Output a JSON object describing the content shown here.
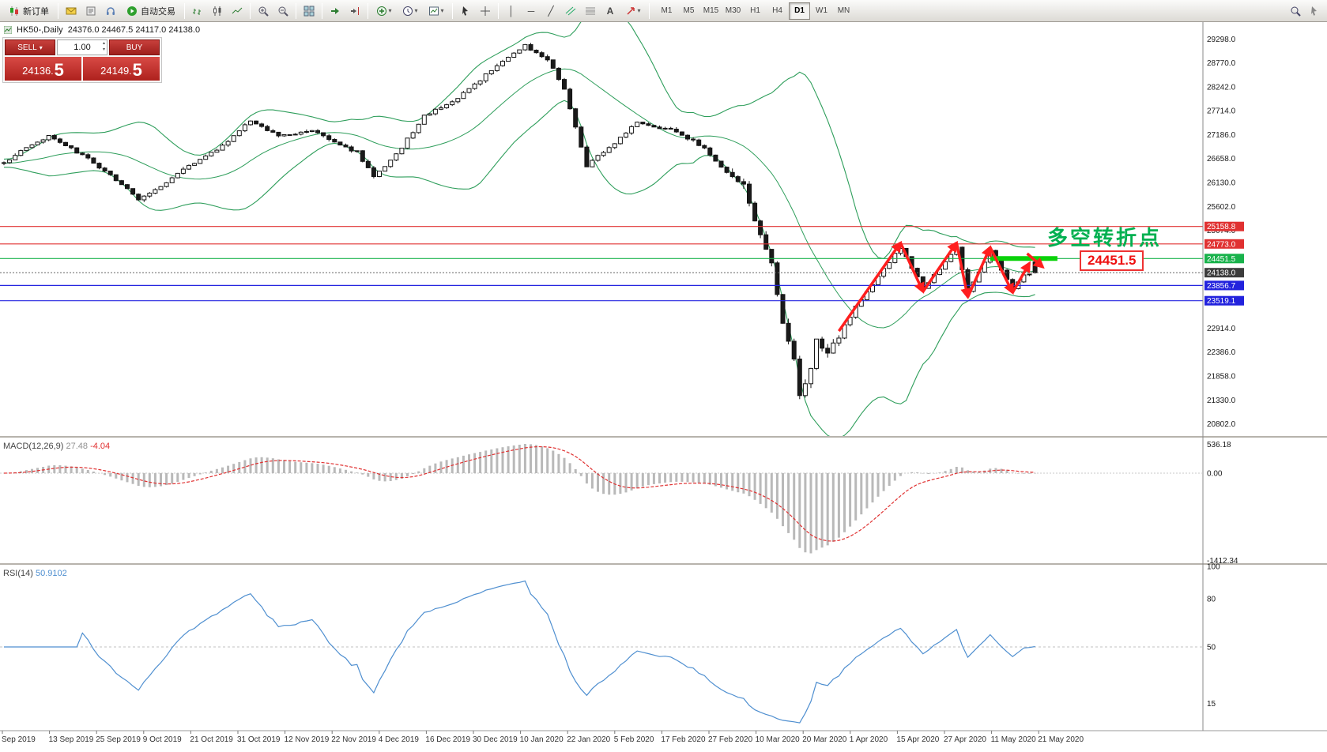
{
  "toolbar": {
    "new_order_label": "新订单",
    "auto_trading_label": "自动交易",
    "timeframes": [
      "M1",
      "M5",
      "M15",
      "M30",
      "H1",
      "H4",
      "D1",
      "W1",
      "MN"
    ],
    "active_timeframe": "D1"
  },
  "symbol_header": {
    "title": "HK50-,Daily",
    "ohlc": "24376.0 24467.5 24117.0 24138.0"
  },
  "trade_panel": {
    "sell_label": "SELL",
    "buy_label": "BUY",
    "volume": "1.00",
    "price_sep": ".",
    "sell_price_main": "24136",
    "sell_price_pip": "5",
    "buy_price_main": "24149",
    "buy_price_pip": "5"
  },
  "annotation": {
    "text": "多空转折点",
    "color": "#00b050"
  },
  "price_callout": {
    "text": "24451.5",
    "color": "#ee1111"
  },
  "indicators": {
    "macd": {
      "name": "MACD(12,26,9)",
      "value_main": "27.48",
      "value_signal": "-4.04",
      "scale_top": "536.18",
      "scale_zero": "0.00",
      "scale_bottom": "-1412.34"
    },
    "rsi": {
      "name": "RSI(14)",
      "value": "50.9102",
      "scale": [
        "100",
        "80",
        "50",
        "15"
      ]
    }
  },
  "price_axis": {
    "labels": [
      "29298.0",
      "28770.0",
      "28242.0",
      "27714.0",
      "27186.0",
      "26658.0",
      "26130.0",
      "25602.0",
      "25074.0",
      "22914.0",
      "22386.0",
      "21858.0",
      "21330.0",
      "20802.0"
    ],
    "badges": [
      {
        "value": 25158.8,
        "text": "25158.8",
        "bg": "#e03131",
        "fg": "#ffffff"
      },
      {
        "value": 24773.0,
        "text": "24773.0",
        "bg": "#e03131",
        "fg": "#ffffff"
      },
      {
        "value": 24451.5,
        "text": "24451.5",
        "bg": "#18b24b",
        "fg": "#ffffff"
      },
      {
        "value": 24138.0,
        "text": "24138.0",
        "bg": "#3c3c3c",
        "fg": "#ffffff"
      },
      {
        "value": 23856.7,
        "text": "23856.7",
        "bg": "#2222dd",
        "fg": "#ffffff"
      },
      {
        "value": 23519.1,
        "text": "23519.1",
        "bg": "#2222dd",
        "fg": "#ffffff"
      }
    ]
  },
  "time_axis": [
    "Sep 2019",
    "13 Sep 2019",
    "25 Sep 2019",
    "9 Oct 2019",
    "21 Oct 2019",
    "31 Oct 2019",
    "12 Nov 2019",
    "22 Nov 2019",
    "4 Dec 2019",
    "16 Dec 2019",
    "30 Dec 2019",
    "10 Jan 2020",
    "22 Jan 2020",
    "5 Feb 2020",
    "17 Feb 2020",
    "27 Feb 2020",
    "10 Mar 2020",
    "20 Mar 2020",
    "1 Apr 2020",
    "15 Apr 2020",
    "27 Apr 2020",
    "11 May 2020",
    "21 May 2020"
  ],
  "chart_data": {
    "type": "candlestick",
    "symbol": "HK50",
    "timeframe": "Daily",
    "last_ohlc": {
      "open": 24376.0,
      "high": 24467.5,
      "low": 24117.0,
      "close": 24138.0
    },
    "y_range": [
      20550,
      29600
    ],
    "bars": 185,
    "overlays": [
      "bollinger_bands_20_2"
    ],
    "band_color": "#2e9e5b",
    "bull_color": "#ffffff",
    "bear_color": "#1a1a1a",
    "price_anchors": [
      [
        0,
        26550
      ],
      [
        4,
        26900
      ],
      [
        8,
        27150
      ],
      [
        13,
        26800
      ],
      [
        18,
        26400
      ],
      [
        24,
        25750
      ],
      [
        28,
        26050
      ],
      [
        33,
        26500
      ],
      [
        38,
        26850
      ],
      [
        44,
        27500
      ],
      [
        49,
        27150
      ],
      [
        55,
        27300
      ],
      [
        59,
        27000
      ],
      [
        63,
        26800
      ],
      [
        66,
        26250
      ],
      [
        71,
        26900
      ],
      [
        75,
        27600
      ],
      [
        80,
        27900
      ],
      [
        85,
        28400
      ],
      [
        90,
        28900
      ],
      [
        93,
        29150
      ],
      [
        97,
        28850
      ],
      [
        100,
        28200
      ],
      [
        104,
        26500
      ],
      [
        108,
        26900
      ],
      [
        113,
        27450
      ],
      [
        120,
        27250
      ],
      [
        125,
        26900
      ],
      [
        128,
        26450
      ],
      [
        132,
        26050
      ],
      [
        134,
        25300
      ],
      [
        137,
        24300
      ],
      [
        139,
        23000
      ],
      [
        141,
        22200
      ],
      [
        142,
        21400
      ],
      [
        144,
        22100
      ],
      [
        145,
        22700
      ],
      [
        147,
        22300
      ],
      [
        150,
        23000
      ],
      [
        155,
        23900
      ],
      [
        160,
        24700
      ],
      [
        164,
        23800
      ],
      [
        167,
        24200
      ],
      [
        170,
        24700
      ],
      [
        172,
        23700
      ],
      [
        176,
        24600
      ],
      [
        180,
        23800
      ],
      [
        182,
        24100
      ],
      [
        184,
        24140
      ]
    ],
    "horizontal_levels": {
      "red": [
        25158.8,
        24773.0
      ],
      "green": [
        24451.5
      ],
      "blue": [
        23856.7,
        23519.1
      ],
      "current": 24138.0
    },
    "green_segment": {
      "price": 24451.5,
      "from_bar": 176,
      "to_bar": 188
    },
    "zigzag": [
      [
        149,
        22850
      ],
      [
        160,
        24800
      ],
      [
        164,
        23720
      ],
      [
        170,
        24800
      ],
      [
        172,
        23600
      ],
      [
        176,
        24700
      ],
      [
        180,
        23700
      ],
      [
        183,
        24350
      ]
    ],
    "end_arrow": [
      [
        182.6,
        24560
      ],
      [
        185.4,
        24260
      ]
    ]
  }
}
